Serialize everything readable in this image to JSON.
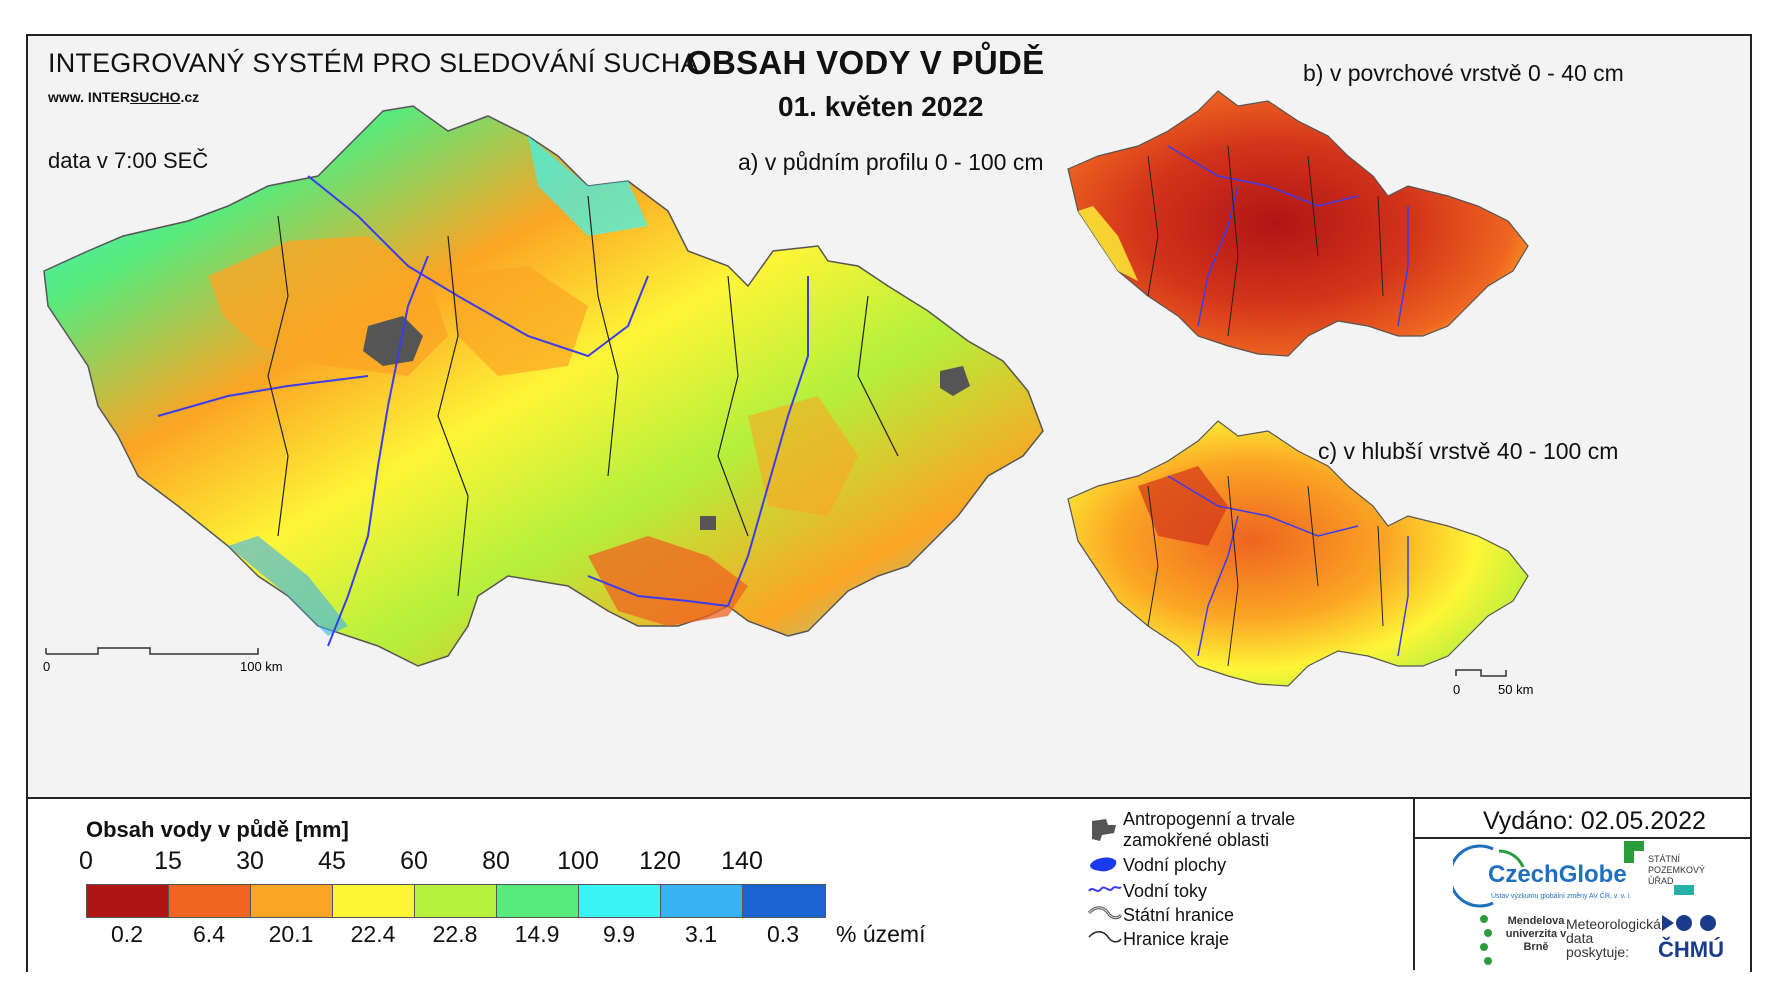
{
  "header": {
    "system_title": "INTEGROVANÝ SYSTÉM PRO SLEDOVÁNÍ SUCHA",
    "website_prefix": "www. INTER",
    "website_underlined": "SUCHO",
    "website_suffix": ".cz",
    "data_time": "data v 7:00 SEČ",
    "main_title": "OBSAH VODY V PŮDĚ",
    "date": "01. květen 2022"
  },
  "maps": {
    "a_caption": "a) v půdním profilu 0 - 100 cm",
    "b_caption": "b) v povrchové vrstvě 0 - 40 cm",
    "c_caption": "c) v hlubší vrstvě 40 - 100 cm",
    "scale_main_left": "0",
    "scale_main_right": "100 km",
    "scale_small_left": "0",
    "scale_small_right": "50 km"
  },
  "legend": {
    "title": "Obsah vody v půdě  [mm]",
    "ticks": [
      "0",
      "15",
      "30",
      "45",
      "60",
      "80",
      "100",
      "120",
      "140"
    ],
    "colors": [
      "#b01515",
      "#ee6420",
      "#fba524",
      "#fef537",
      "#b4f03c",
      "#58ea7c",
      "#3bf3f2",
      "#38b2f2",
      "#1a64d4"
    ],
    "percentages": [
      "0.2",
      "6.4",
      "20.1",
      "22.4",
      "22.8",
      "14.9",
      "9.9",
      "3.1",
      "0.3"
    ],
    "percent_unit": "% území"
  },
  "symbols": [
    {
      "icon": "urban-area-icon",
      "label_line1": "Antropogenní a trvale",
      "label_line2": "zamokřené oblasti"
    },
    {
      "icon": "water-body-icon",
      "label": "Vodní plochy"
    },
    {
      "icon": "river-icon",
      "label": "Vodní toky"
    },
    {
      "icon": "state-border-icon",
      "label": "Státní hranice"
    },
    {
      "icon": "region-border-icon",
      "label": "Hranice kraje"
    }
  ],
  "issued": "Vydáno: 02.05.2022",
  "logos": {
    "czechglobe": "CzechGlobe",
    "czechglobe_sub": "Ústav výzkumu globální změny AV ČR, v. v. i.",
    "spu": "STÁTNÍ POZEMKOVÝ ÚŘAD",
    "mendel": "Mendelova univerzita v Brně",
    "met_data": "Meteorologická data poskytuje:",
    "chmu": "ČHMÚ"
  }
}
